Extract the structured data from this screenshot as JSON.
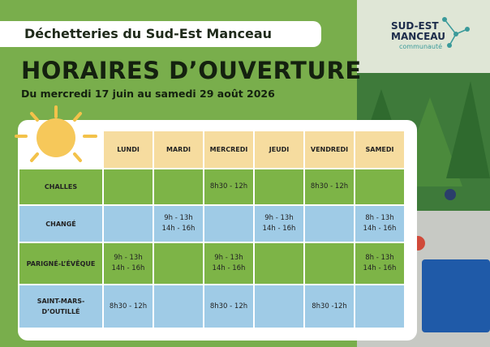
{
  "header": {
    "title": "Déchetteries du Sud-Est Manceau",
    "heading": "HORAIRES D’OUVERTURE",
    "subtitle": "Du mercredi 17 juin au samedi 29 août 2026"
  },
  "logo": {
    "line1": "SUD-EST",
    "line2": "MANCEAU",
    "tagline": "communauté"
  },
  "table": {
    "columns": [
      "LUNDI",
      "MARDI",
      "MERCREDI",
      "JEUDI",
      "VENDREDI",
      "SAMEDI"
    ],
    "rows": [
      {
        "label": [
          "CHALLES"
        ],
        "cells": [
          null,
          null,
          [
            "8h30 - 12h"
          ],
          null,
          [
            "8h30 - 12h"
          ],
          null
        ]
      },
      {
        "label": [
          "CHANGÉ"
        ],
        "cells": [
          null,
          [
            "9h - 13h",
            "14h - 16h"
          ],
          null,
          [
            "9h - 13h",
            "14h - 16h"
          ],
          null,
          [
            "8h - 13h",
            "14h - 16h"
          ]
        ]
      },
      {
        "label": [
          "PARIGNÉ-L’ÉVÊQUE"
        ],
        "cells": [
          [
            "9h - 13h",
            "14h - 16h"
          ],
          null,
          [
            "9h - 13h",
            "14h - 16h"
          ],
          null,
          null,
          [
            "8h - 13h",
            "14h - 16h"
          ]
        ]
      },
      {
        "label": [
          "SAINT-MARS-",
          "D’OUTILLÉ"
        ],
        "cells": [
          [
            "8h30 - 12h"
          ],
          null,
          [
            "8h30 - 12h"
          ],
          null,
          [
            "8h30 -12h"
          ],
          null
        ]
      }
    ]
  }
}
